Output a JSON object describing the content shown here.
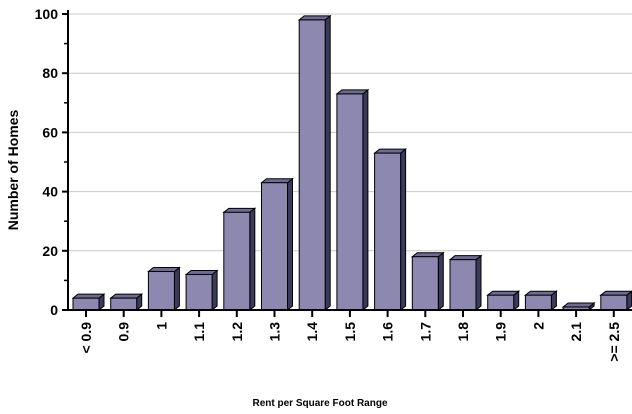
{
  "chart_data": {
    "type": "bar",
    "categories": [
      "< 0.9",
      "0.9",
      "1",
      "1.1",
      "1.2",
      "1.3",
      "1.4",
      "1.5",
      "1.6",
      "1.7",
      "1.8",
      "1.9",
      "2",
      "2.1",
      ">= 2.5"
    ],
    "values": [
      4,
      4,
      13,
      12,
      33,
      43,
      98,
      73,
      53,
      18,
      17,
      5,
      5,
      1,
      5
    ],
    "title": "",
    "xlabel": "Rent per Square Foot Range",
    "ylabel": "Number of Homes",
    "ylim": [
      0,
      100
    ],
    "yticks": [
      "0",
      "20",
      "40",
      "60",
      "80",
      "100"
    ],
    "grid": true,
    "style": "3d",
    "colors": {
      "bar_front": "#8c88b0",
      "bar_side": "#3a3a5c",
      "bar_top": "#6e6a94",
      "grid": "#c8c8c8",
      "axis": "#000000"
    }
  }
}
